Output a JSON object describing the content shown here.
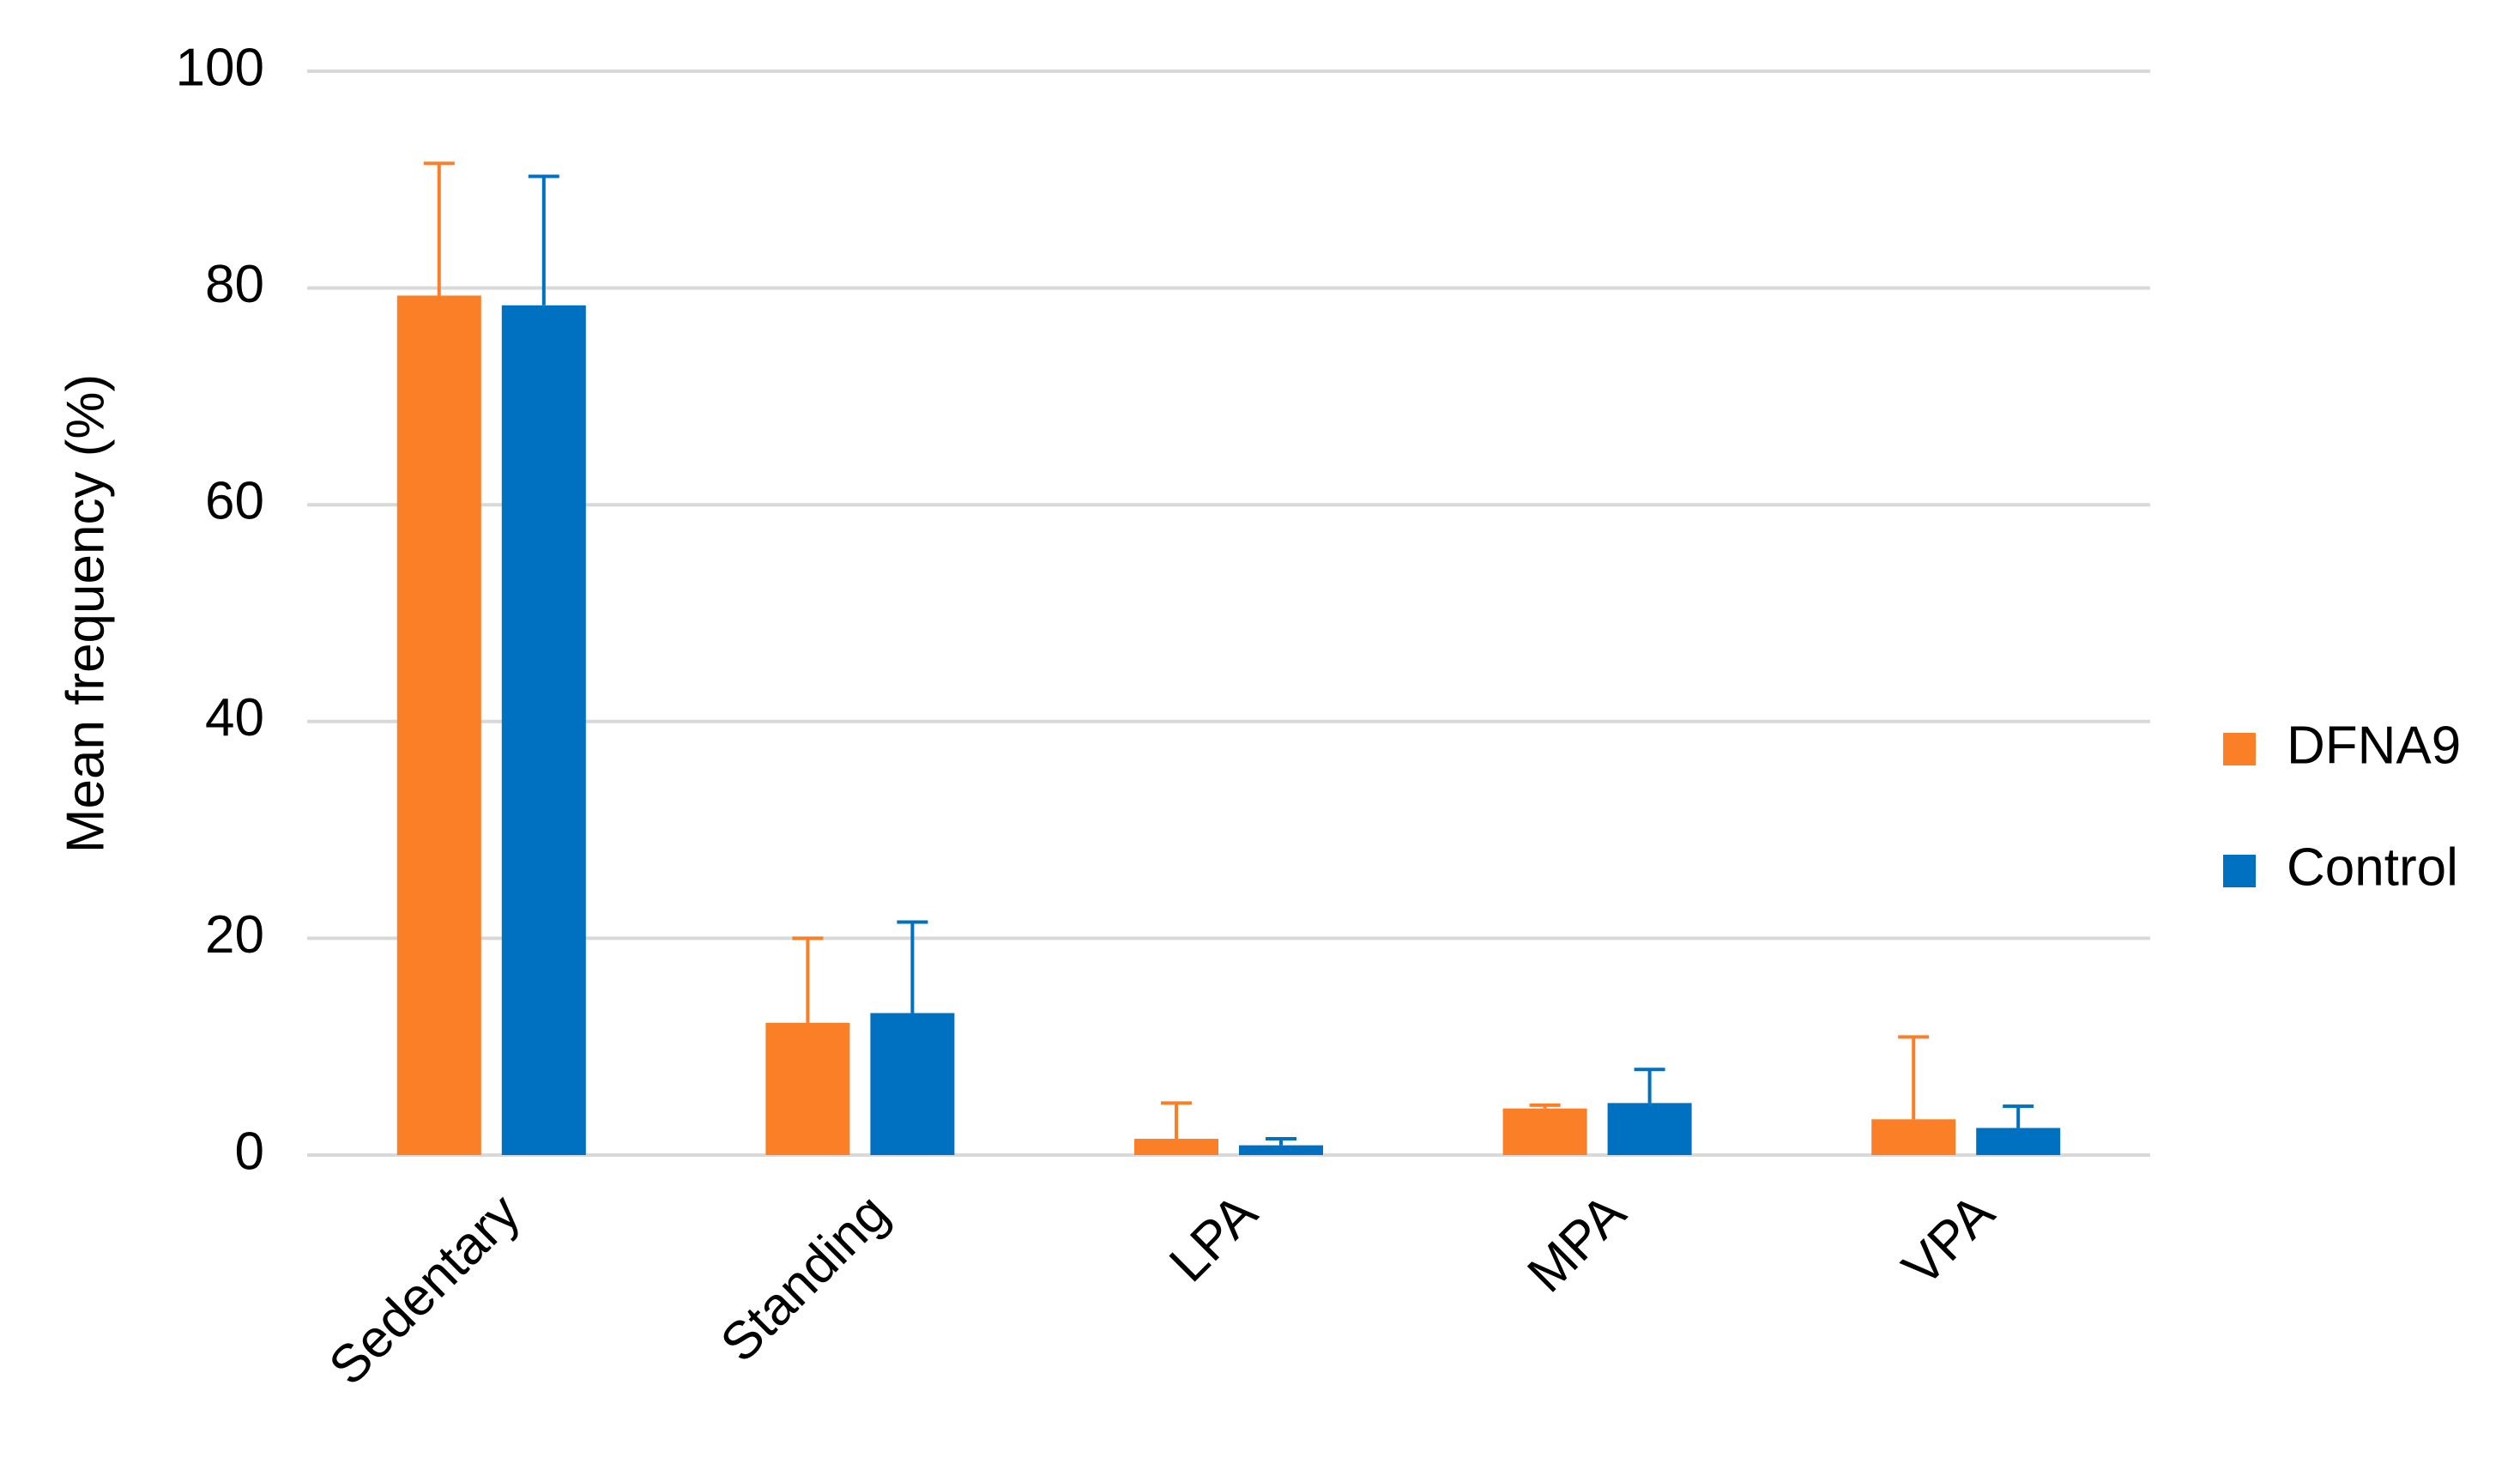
{
  "chart_data": {
    "type": "bar",
    "y_label": "Mean frequency (%)",
    "categories": [
      "Sedentary",
      "Standing",
      "LPA",
      "MPA",
      "VPA"
    ],
    "series": [
      {
        "name": "DFNA9",
        "color": "#fb7f26",
        "values": [
          79.3,
          12.2,
          1.5,
          4.3,
          3.3
        ],
        "errors": [
          12.2,
          7.8,
          3.3,
          0.3,
          7.6
        ]
      },
      {
        "name": "Control",
        "color": "#0070c0",
        "values": [
          78.4,
          13.1,
          0.9,
          4.8,
          2.5
        ],
        "errors": [
          11.9,
          8.4,
          0.6,
          3.1,
          2.0
        ]
      }
    ],
    "ylim": [
      0,
      100
    ],
    "yticks": [
      0,
      20,
      40,
      60,
      80,
      100
    ],
    "grid": true,
    "legend": "right"
  }
}
